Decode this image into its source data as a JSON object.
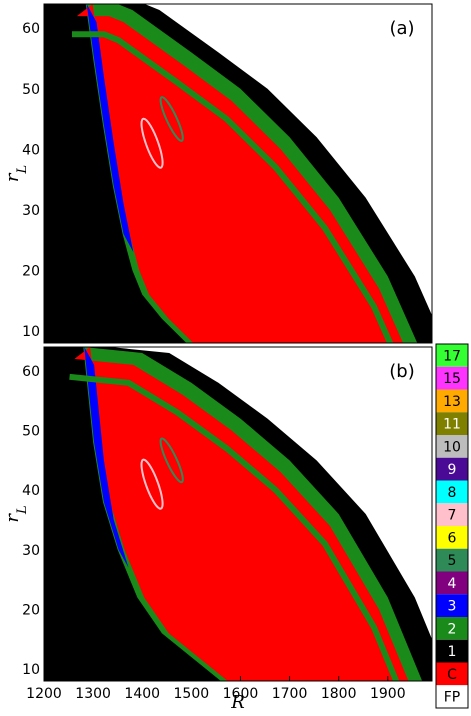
{
  "chart_data": [
    {
      "type": "heatmap",
      "panel": "(a)",
      "ylabel": "r_L",
      "xlim": [
        1200,
        1990
      ],
      "ylim": [
        8,
        64
      ],
      "yticks": [
        10,
        20,
        30,
        40,
        50,
        60
      ],
      "grid": false,
      "region": {
        "upper_boundary": [
          [
            1285,
            64
          ],
          [
            1350,
            64
          ],
          [
            1380,
            63
          ],
          [
            1500,
            56
          ],
          [
            1600,
            50
          ],
          [
            1700,
            42
          ],
          [
            1800,
            32
          ],
          [
            1900,
            19
          ],
          [
            1960,
            8
          ]
        ],
        "lower_boundary": [
          [
            1285,
            64
          ],
          [
            1300,
            55
          ],
          [
            1320,
            44
          ],
          [
            1340,
            34
          ],
          [
            1360,
            26
          ],
          [
            1380,
            20
          ],
          [
            1400,
            16
          ],
          [
            1440,
            12
          ],
          [
            1490,
            8
          ]
        ],
        "fill": "C",
        "border": "2"
      }
    },
    {
      "type": "heatmap",
      "panel": "(b)",
      "xlabel": "R",
      "ylabel": "r_L",
      "xlim": [
        1200,
        1990
      ],
      "ylim": [
        8,
        64
      ],
      "xticks": [
        1200,
        1300,
        1400,
        1500,
        1600,
        1700,
        1800,
        1900
      ],
      "yticks": [
        10,
        20,
        30,
        40,
        50,
        60
      ],
      "grid": false,
      "region": {
        "upper_boundary": [
          [
            1280,
            64
          ],
          [
            1400,
            63
          ],
          [
            1500,
            58
          ],
          [
            1600,
            52
          ],
          [
            1700,
            45
          ],
          [
            1800,
            36
          ],
          [
            1900,
            22
          ],
          [
            1970,
            8
          ]
        ],
        "lower_boundary": [
          [
            1280,
            64
          ],
          [
            1290,
            56
          ],
          [
            1300,
            48
          ],
          [
            1320,
            38
          ],
          [
            1350,
            30
          ],
          [
            1390,
            22
          ],
          [
            1440,
            16
          ],
          [
            1500,
            12
          ],
          [
            1560,
            8
          ]
        ],
        "fill": "C",
        "border": "2"
      }
    }
  ],
  "colorbar": {
    "entries": [
      {
        "label": "17",
        "color": "#33ff33"
      },
      {
        "label": "15",
        "color": "#ff33ff"
      },
      {
        "label": "13",
        "color": "#ffaa00"
      },
      {
        "label": "11",
        "color": "#808000"
      },
      {
        "label": "10",
        "color": "#bdbdbd"
      },
      {
        "label": "9",
        "color": "#4b0a96"
      },
      {
        "label": "8",
        "color": "#00ffff"
      },
      {
        "label": "7",
        "color": "#ffc0cb"
      },
      {
        "label": "6",
        "color": "#ffff00"
      },
      {
        "label": "5",
        "color": "#2e8b57"
      },
      {
        "label": "4",
        "color": "#800080"
      },
      {
        "label": "3",
        "color": "#0000ff"
      },
      {
        "label": "2",
        "color": "#1a8a1a"
      },
      {
        "label": "1",
        "color": "#000000"
      },
      {
        "label": "C",
        "color": "#ff0000"
      },
      {
        "label": "FP",
        "color": "#ffffff"
      }
    ]
  }
}
